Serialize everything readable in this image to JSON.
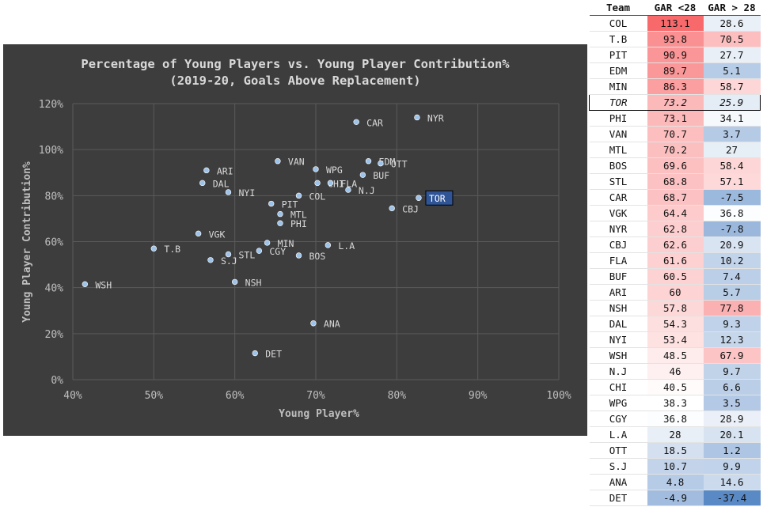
{
  "chart_data": {
    "type": "scatter",
    "title": "Percentage of Young Players vs. Young Player Contribution%",
    "subtitle": "(2019-20, Goals Above Replacement)",
    "xlabel": "Young Player%",
    "ylabel": "Young Player Contribution%",
    "xlim": [
      40,
      100
    ],
    "ylim": [
      0,
      120
    ],
    "x_ticks": [
      "40%",
      "50%",
      "60%",
      "70%",
      "80%",
      "90%",
      "100%"
    ],
    "y_ticks": [
      "0%",
      "20%",
      "40%",
      "60%",
      "80%",
      "100%",
      "120%"
    ],
    "grid": true,
    "highlight": "TOR",
    "points": [
      {
        "label": "NYR",
        "x": 82.5,
        "y": 114
      },
      {
        "label": "CAR",
        "x": 75.0,
        "y": 112
      },
      {
        "label": "VAN",
        "x": 65.3,
        "y": 95
      },
      {
        "label": "EDM",
        "x": 76.5,
        "y": 95
      },
      {
        "label": "OTT",
        "x": 78.0,
        "y": 94
      },
      {
        "label": "WPG",
        "x": 70.0,
        "y": 91.5
      },
      {
        "label": "ARI",
        "x": 56.5,
        "y": 91
      },
      {
        "label": "BUF",
        "x": 75.8,
        "y": 89
      },
      {
        "label": "DAL",
        "x": 56.0,
        "y": 85.5
      },
      {
        "label": "CHI",
        "x": 70.2,
        "y": 85.5
      },
      {
        "label": "FLA",
        "x": 71.8,
        "y": 85.5
      },
      {
        "label": "N.J",
        "x": 74.0,
        "y": 82.5
      },
      {
        "label": "NYI",
        "x": 59.2,
        "y": 81.5
      },
      {
        "label": "COL",
        "x": 67.9,
        "y": 80
      },
      {
        "label": "TOR",
        "x": 82.7,
        "y": 79
      },
      {
        "label": "PIT",
        "x": 64.5,
        "y": 76.5
      },
      {
        "label": "CBJ",
        "x": 79.4,
        "y": 74.5
      },
      {
        "label": "MTL",
        "x": 65.6,
        "y": 72
      },
      {
        "label": "PHI",
        "x": 65.6,
        "y": 68
      },
      {
        "label": "VGK",
        "x": 55.5,
        "y": 63.5
      },
      {
        "label": "MIN",
        "x": 64.0,
        "y": 59.5
      },
      {
        "label": "L.A",
        "x": 71.5,
        "y": 58.5
      },
      {
        "label": "T.B",
        "x": 50.0,
        "y": 57
      },
      {
        "label": "CGY",
        "x": 63.0,
        "y": 56
      },
      {
        "label": "STL",
        "x": 59.2,
        "y": 54.5
      },
      {
        "label": "BOS",
        "x": 67.9,
        "y": 54
      },
      {
        "label": "S.J",
        "x": 57.0,
        "y": 52
      },
      {
        "label": "NSH",
        "x": 60.0,
        "y": 42.5
      },
      {
        "label": "WSH",
        "x": 41.5,
        "y": 41.5
      },
      {
        "label": "ANA",
        "x": 69.7,
        "y": 24.5
      },
      {
        "label": "DET",
        "x": 62.5,
        "y": 11.5
      }
    ]
  },
  "table": {
    "headers": [
      "Team",
      "GAR <28",
      "GAR > 28"
    ],
    "highlight_team": "TOR",
    "rows": [
      {
        "team": "COL",
        "a": "113.1",
        "b": "28.6"
      },
      {
        "team": "T.B",
        "a": "93.8",
        "b": "70.5"
      },
      {
        "team": "PIT",
        "a": "90.9",
        "b": "27.7"
      },
      {
        "team": "EDM",
        "a": "89.7",
        "b": "5.1"
      },
      {
        "team": "MIN",
        "a": "86.3",
        "b": "58.7"
      },
      {
        "team": "TOR",
        "a": "73.2",
        "b": "25.9"
      },
      {
        "team": "PHI",
        "a": "73.1",
        "b": "34.1"
      },
      {
        "team": "VAN",
        "a": "70.7",
        "b": "3.7"
      },
      {
        "team": "MTL",
        "a": "70.2",
        "b": "27"
      },
      {
        "team": "BOS",
        "a": "69.6",
        "b": "58.4"
      },
      {
        "team": "STL",
        "a": "68.8",
        "b": "57.1"
      },
      {
        "team": "CAR",
        "a": "68.7",
        "b": "-7.5"
      },
      {
        "team": "VGK",
        "a": "64.4",
        "b": "36.8"
      },
      {
        "team": "NYR",
        "a": "62.8",
        "b": "-7.8"
      },
      {
        "team": "CBJ",
        "a": "62.6",
        "b": "20.9"
      },
      {
        "team": "FLA",
        "a": "61.6",
        "b": "10.2"
      },
      {
        "team": "BUF",
        "a": "60.5",
        "b": "7.4"
      },
      {
        "team": "ARI",
        "a": "60",
        "b": "5.7"
      },
      {
        "team": "NSH",
        "a": "57.8",
        "b": "77.8"
      },
      {
        "team": "DAL",
        "a": "54.3",
        "b": "9.3"
      },
      {
        "team": "NYI",
        "a": "53.4",
        "b": "12.3"
      },
      {
        "team": "WSH",
        "a": "48.5",
        "b": "67.9"
      },
      {
        "team": "N.J",
        "a": "46",
        "b": "9.7"
      },
      {
        "team": "CHI",
        "a": "40.5",
        "b": "6.6"
      },
      {
        "team": "WPG",
        "a": "38.3",
        "b": "3.5"
      },
      {
        "team": "CGY",
        "a": "36.8",
        "b": "28.9"
      },
      {
        "team": "L.A",
        "a": "28",
        "b": "20.1"
      },
      {
        "team": "OTT",
        "a": "18.5",
        "b": "1.2"
      },
      {
        "team": "S.J",
        "a": "10.7",
        "b": "9.9"
      },
      {
        "team": "ANA",
        "a": "4.8",
        "b": "14.6"
      },
      {
        "team": "DET",
        "a": "-4.9",
        "b": "-37.4"
      }
    ]
  },
  "colors": {
    "chart_bg": "#3d3d3d",
    "grid": "#5a5a5a",
    "text": "#d9d9d9",
    "point": "#9ec3ea",
    "highlight_box": "#2f5597",
    "heat_high": "#f8696b",
    "heat_mid": "#ffffff",
    "heat_low": "#5a8ac6"
  }
}
